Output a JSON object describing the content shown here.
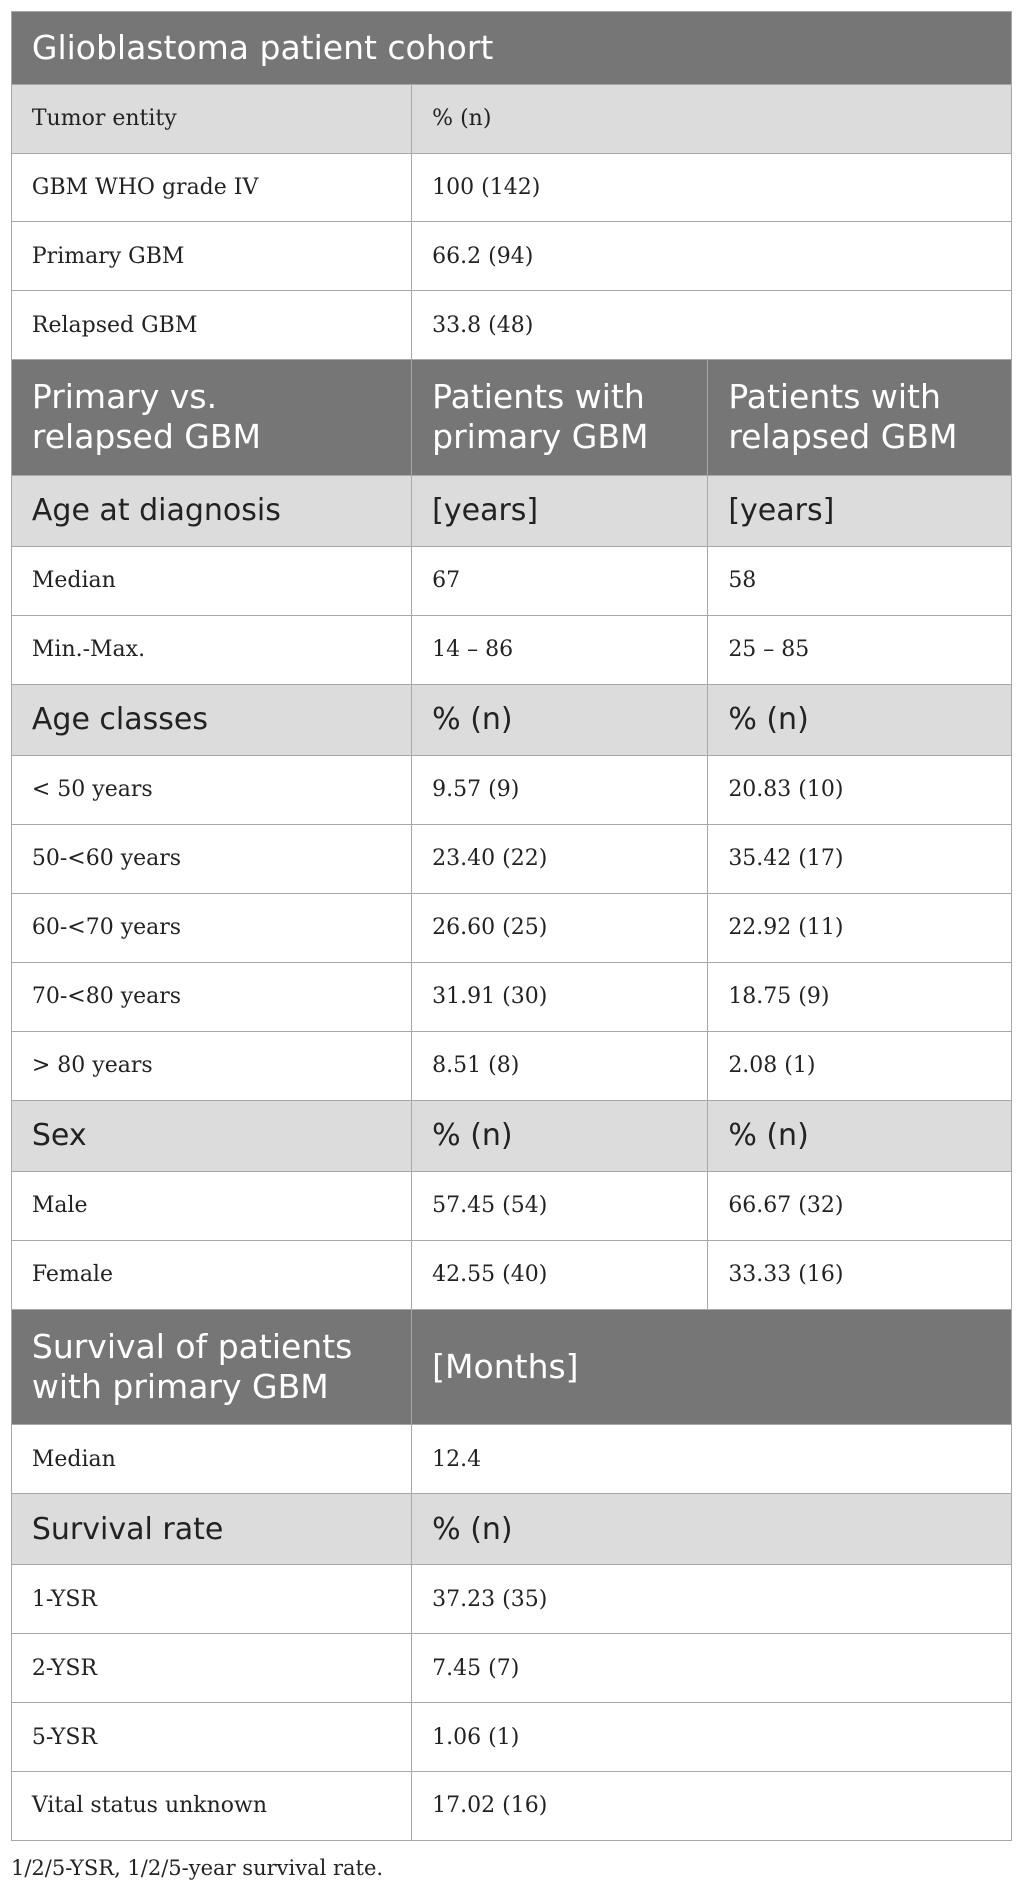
{
  "table": {
    "sections": [
      {
        "header": [
          "Glioblastoma patient cohort"
        ],
        "groups": [
          {
            "subheader": [
              "Tumor entity",
              "% (n)"
            ],
            "rows": [
              [
                "GBM WHO grade IV",
                "100 (142)"
              ],
              [
                "Primary GBM",
                "66.2 (94)"
              ],
              [
                "Relapsed GBM",
                "33.8 (48)"
              ]
            ]
          }
        ]
      },
      {
        "header": [
          "Primary vs.\nrelapsed GBM",
          "Patients with\nprimary GBM",
          "Patients with\nrelapsed GBM"
        ],
        "groups": [
          {
            "subheader": [
              "Age at diagnosis",
              "[years]",
              "[years]"
            ],
            "rows": [
              [
                "Median",
                "67",
                "58"
              ],
              [
                "Min.-Max.",
                "14 – 86",
                "25 – 85"
              ]
            ]
          },
          {
            "subheader": [
              "Age classes",
              "% (n)",
              "% (n)"
            ],
            "rows": [
              [
                "< 50 years",
                "9.57 (9)",
                "20.83 (10)"
              ],
              [
                "50-<60 years",
                "23.40 (22)",
                "35.42 (17)"
              ],
              [
                "60-<70 years",
                "26.60 (25)",
                "22.92 (11)"
              ],
              [
                "70-<80 years",
                "31.91 (30)",
                "18.75 (9)"
              ],
              [
                "> 80 years",
                "8.51 (8)",
                "2.08 (1)"
              ]
            ]
          },
          {
            "subheader": [
              "Sex",
              "% (n)",
              "% (n)"
            ],
            "rows": [
              [
                "Male",
                "57.45 (54)",
                "66.67 (32)"
              ],
              [
                "Female",
                "42.55 (40)",
                "33.33 (16)"
              ]
            ]
          }
        ]
      },
      {
        "header": [
          "Survival of patients\nwith primary GBM",
          "[Months]"
        ],
        "groups": [
          {
            "rows": [
              [
                "Median",
                "12.4"
              ]
            ]
          },
          {
            "subheader": [
              "Survival rate",
              "% (n)"
            ],
            "rows": [
              [
                "1-YSR",
                "37.23 (35)"
              ],
              [
                "2-YSR",
                "7.45 (7)"
              ],
              [
                "5-YSR",
                "1.06 (1)"
              ],
              [
                "Vital status unknown",
                "17.02 (16)"
              ]
            ]
          }
        ]
      }
    ],
    "footnote": "1/2/5-YSR, 1/2/5-year survival rate."
  }
}
